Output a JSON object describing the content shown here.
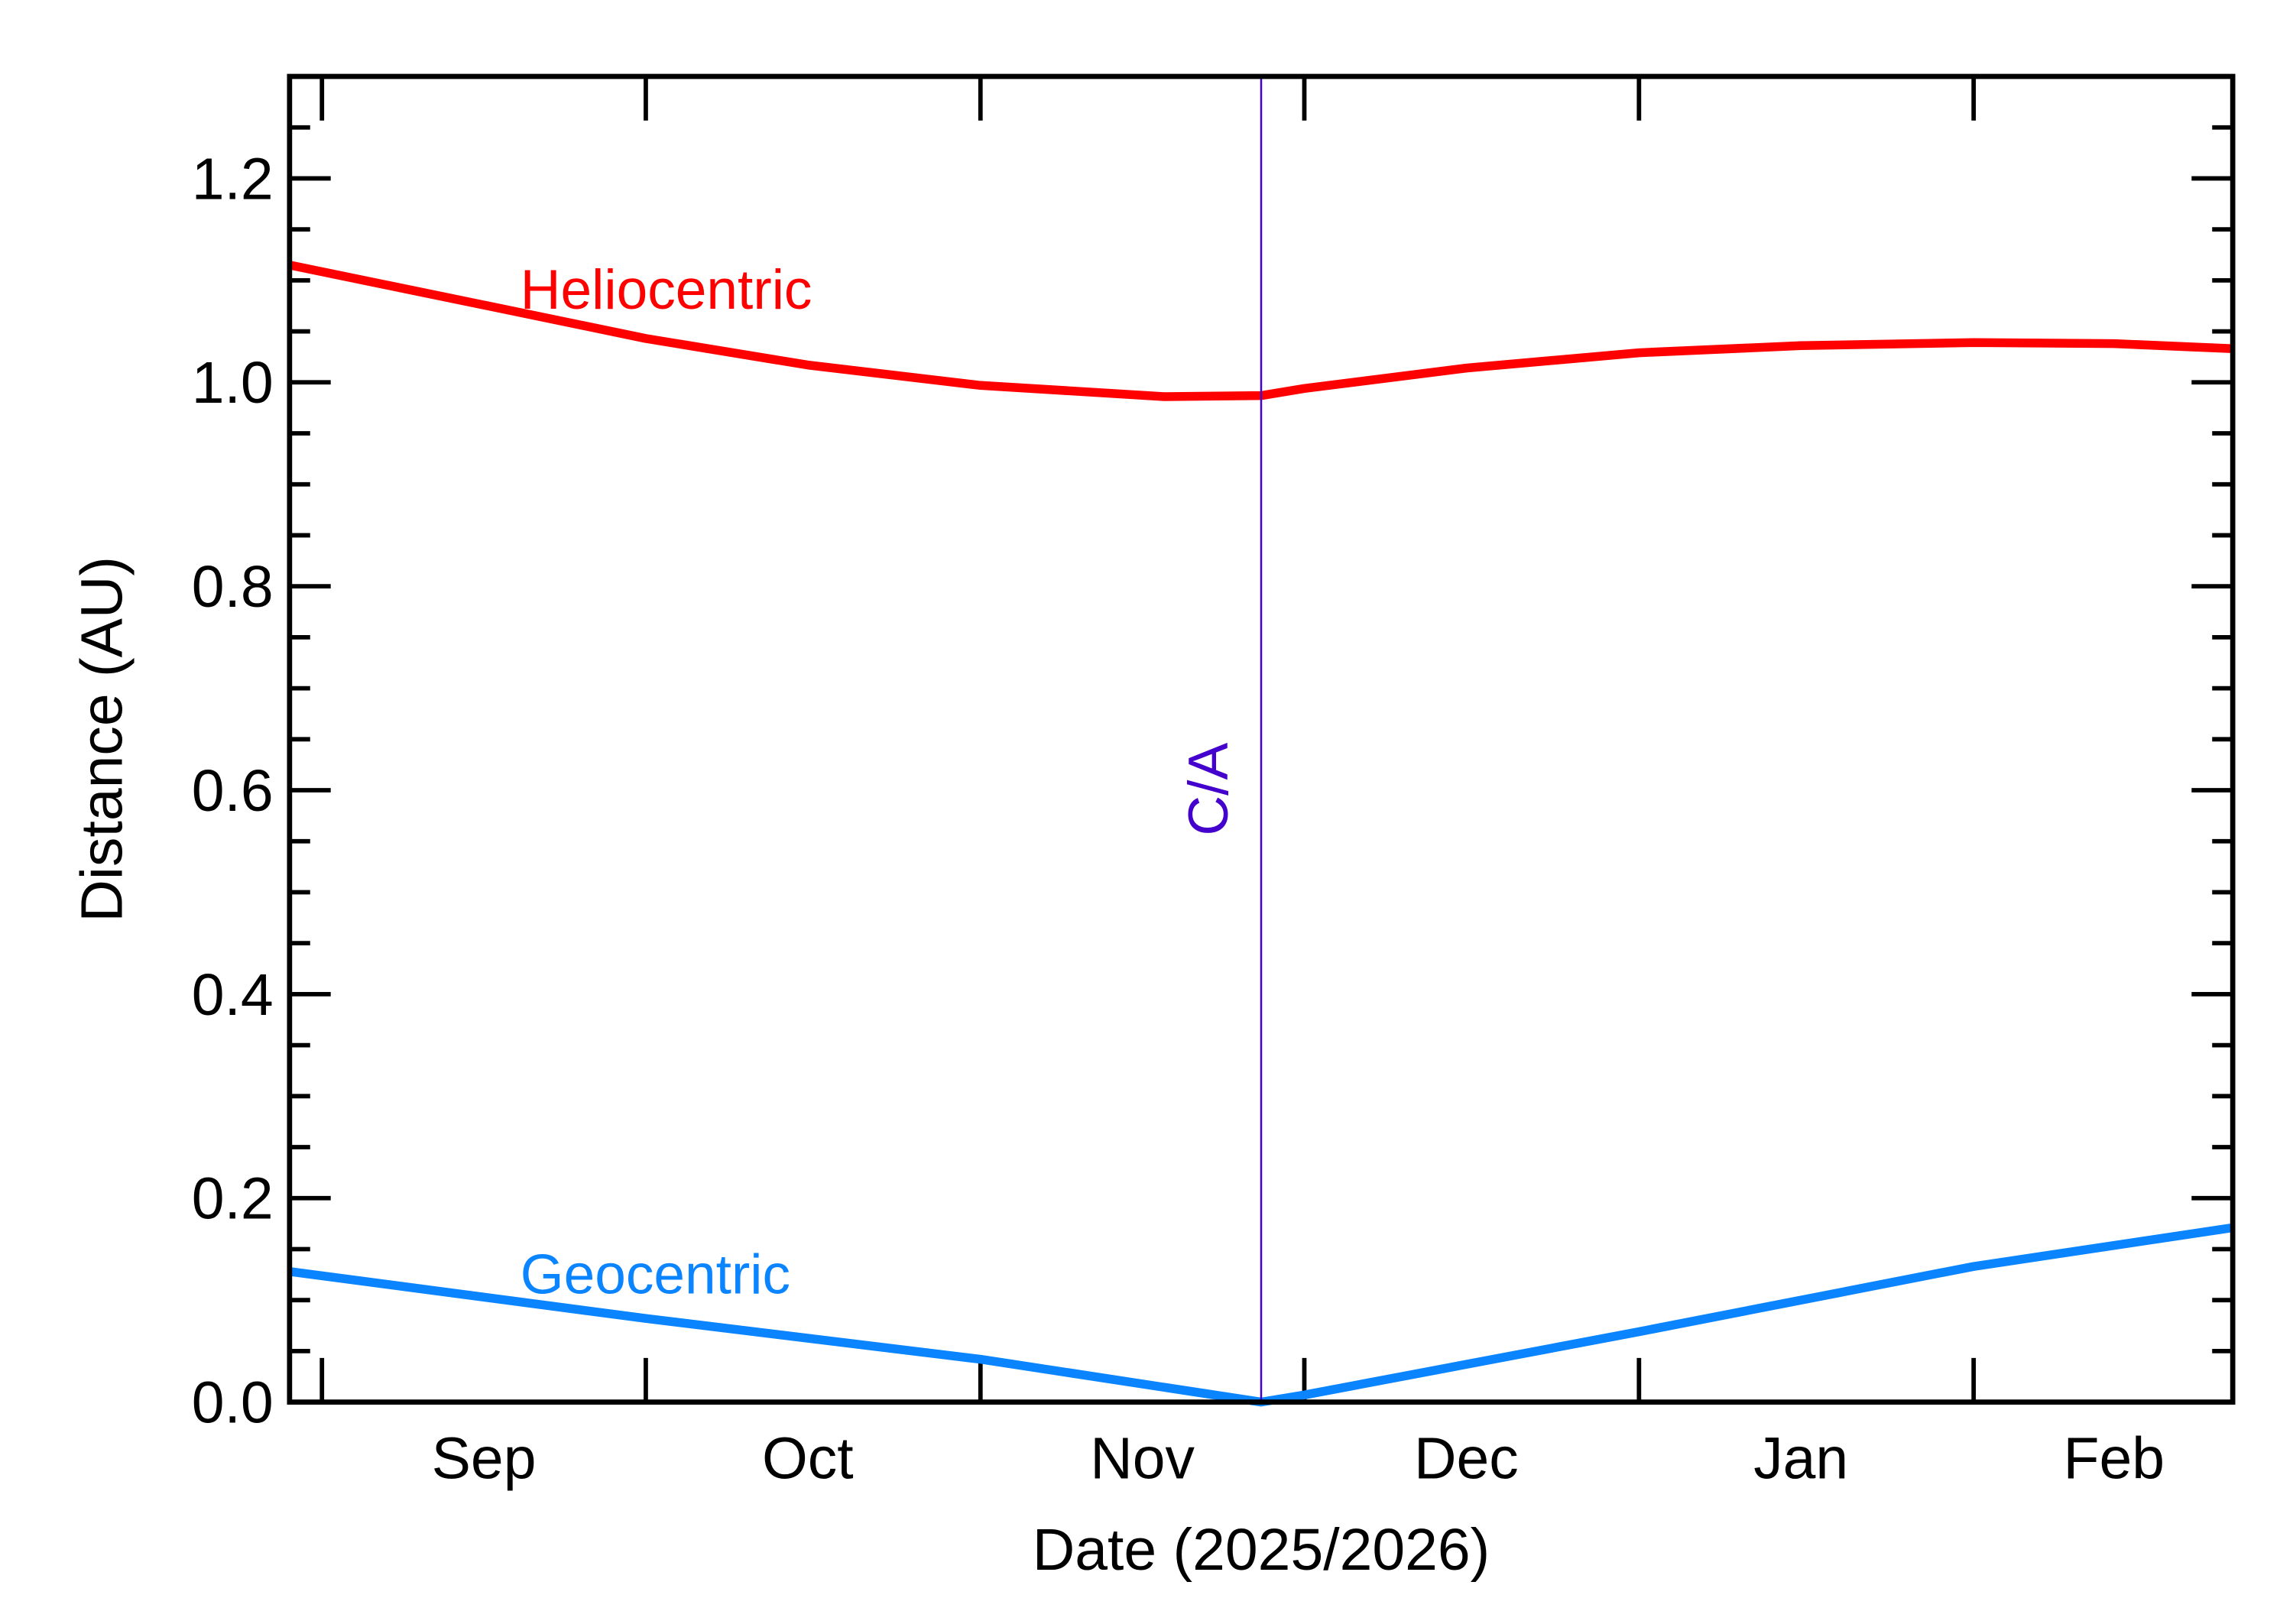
{
  "chart_data": {
    "type": "line",
    "xlabel": "Date (2025/2026)",
    "ylabel": "Distance (AU)",
    "xlim": [
      "2025-08-29",
      "2026-02-25"
    ],
    "ylim": [
      0,
      1.3
    ],
    "x_tick_labels": [
      {
        "label": "Sep",
        "date": "2025-09-16"
      },
      {
        "label": "Oct",
        "date": "2025-10-16"
      },
      {
        "label": "Nov",
        "date": "2025-11-16"
      },
      {
        "label": "Dec",
        "date": "2025-12-16"
      },
      {
        "label": "Jan",
        "date": "2026-01-16"
      },
      {
        "label": "Feb",
        "date": "2026-02-14"
      }
    ],
    "x_major_ticks": [
      "2025-09-01",
      "2025-10-01",
      "2025-11-01",
      "2025-12-01",
      "2026-01-01",
      "2026-02-01"
    ],
    "y_ticks": [
      0.0,
      0.2,
      0.4,
      0.6,
      0.8,
      1.0,
      1.2
    ],
    "y_tick_labels": [
      "0.0",
      "0.2",
      "0.4",
      "0.6",
      "0.8",
      "1.0",
      "1.2"
    ],
    "y_minor_step": 0.05,
    "grid": false,
    "annotation": {
      "label": "C/A",
      "date": "2025-11-27",
      "color": "#4400cc"
    },
    "series": [
      {
        "name": "Heliocentric",
        "color": "#ff0000",
        "points": [
          [
            "2025-08-29",
            1.115
          ],
          [
            "2025-09-15",
            1.078
          ],
          [
            "2025-10-01",
            1.043
          ],
          [
            "2025-10-16",
            1.017
          ],
          [
            "2025-11-01",
            0.997
          ],
          [
            "2025-11-18",
            0.986
          ],
          [
            "2025-11-27",
            0.987
          ],
          [
            "2025-12-01",
            0.994
          ],
          [
            "2025-12-16",
            1.014
          ],
          [
            "2026-01-01",
            1.029
          ],
          [
            "2026-01-16",
            1.036
          ],
          [
            "2026-02-01",
            1.039
          ],
          [
            "2026-02-14",
            1.038
          ],
          [
            "2026-02-25",
            1.033
          ]
        ]
      },
      {
        "name": "Geocentric",
        "color": "#0a84ff",
        "points": [
          [
            "2025-08-29",
            0.128
          ],
          [
            "2025-10-01",
            0.082
          ],
          [
            "2025-11-01",
            0.042
          ],
          [
            "2025-11-27",
            0.0
          ],
          [
            "2025-12-01",
            0.007
          ],
          [
            "2026-01-01",
            0.069
          ],
          [
            "2026-02-01",
            0.133
          ],
          [
            "2026-02-25",
            0.171
          ]
        ]
      }
    ]
  }
}
